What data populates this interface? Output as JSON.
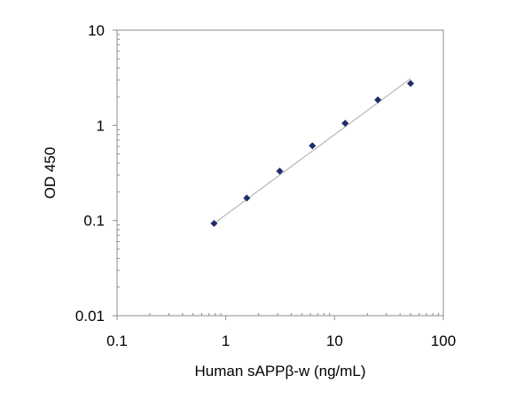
{
  "chart_data": {
    "type": "scatter",
    "title": "",
    "xlabel": "Human sAPPβ-w (ng/mL)",
    "ylabel": "OD 450",
    "x_scale": "log",
    "y_scale": "log",
    "xlim": [
      0.1,
      100
    ],
    "ylim": [
      0.01,
      10
    ],
    "x_ticks": [
      0.1,
      1,
      10,
      100
    ],
    "x_tick_labels": [
      "0.1",
      "1",
      "10",
      "100"
    ],
    "y_ticks": [
      0.01,
      0.1,
      1,
      10
    ],
    "y_tick_labels": [
      "0.01",
      "0.1",
      "1",
      "10"
    ],
    "grid": false,
    "marker_color": "#1f2d6b",
    "trendline_color": "#aaaaaa",
    "series": [
      {
        "marker": "diamond",
        "points": [
          {
            "x": 0.78,
            "y": 0.093
          },
          {
            "x": 1.56,
            "y": 0.172
          },
          {
            "x": 3.13,
            "y": 0.33
          },
          {
            "x": 6.25,
            "y": 0.61
          },
          {
            "x": 12.5,
            "y": 1.05
          },
          {
            "x": 25,
            "y": 1.85
          },
          {
            "x": 50,
            "y": 2.75
          }
        ],
        "trendline": {
          "x_start": 0.78,
          "y_start": 0.093,
          "x_end": 50,
          "y_end": 3.1
        }
      }
    ]
  }
}
